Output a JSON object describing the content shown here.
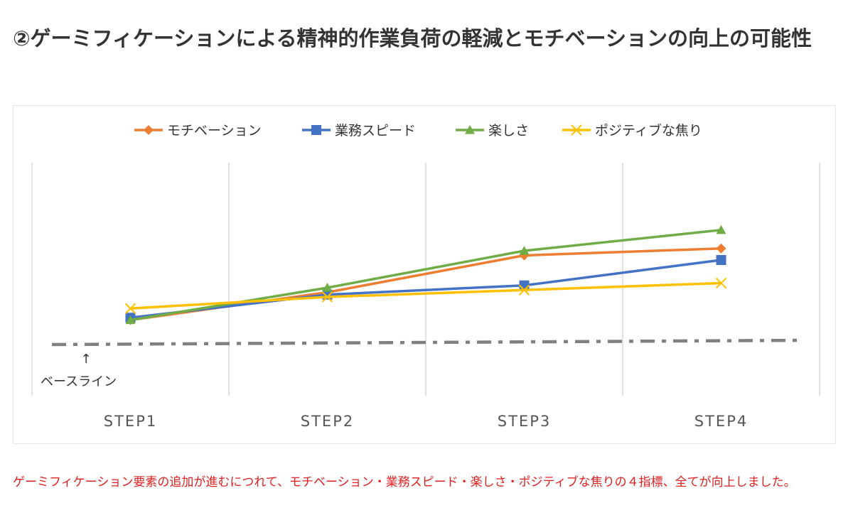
{
  "heading": "②ゲーミフィケーションによる精神的作業負荷の軽減とモチベーションの向上の可能性",
  "caption": "ゲーミフィケーション要素の追加が進むにつれて、モチベーション・業務スピード・楽しさ・ポジティブな焦りの４指標、全てが向上しました。",
  "chart_data": {
    "type": "line",
    "title": "",
    "xlabel": "",
    "ylabel": "",
    "categories": [
      "STEP1",
      "STEP2",
      "STEP3",
      "STEP4"
    ],
    "ylim": [
      0,
      10
    ],
    "grid": "vertical",
    "legend_position": "top",
    "series": [
      {
        "name": "モチベーション",
        "values": [
          1.0,
          2.2,
          3.8,
          4.1
        ],
        "color": "#ed7d31",
        "marker": "diamond"
      },
      {
        "name": "業務スピード",
        "values": [
          1.1,
          2.1,
          2.5,
          3.6
        ],
        "color": "#4472c4",
        "marker": "square"
      },
      {
        "name": "楽しさ",
        "values": [
          1.0,
          2.4,
          4.0,
          4.9
        ],
        "color": "#70ad47",
        "marker": "triangle"
      },
      {
        "name": "ポジティブな焦り",
        "values": [
          1.5,
          2.0,
          2.3,
          2.6
        ],
        "color": "#ffc000",
        "marker": "x"
      }
    ],
    "baseline": {
      "value": 0,
      "label": "ベースライン",
      "arrow": "↑",
      "color": "#808080",
      "style": "dash-dot"
    }
  }
}
